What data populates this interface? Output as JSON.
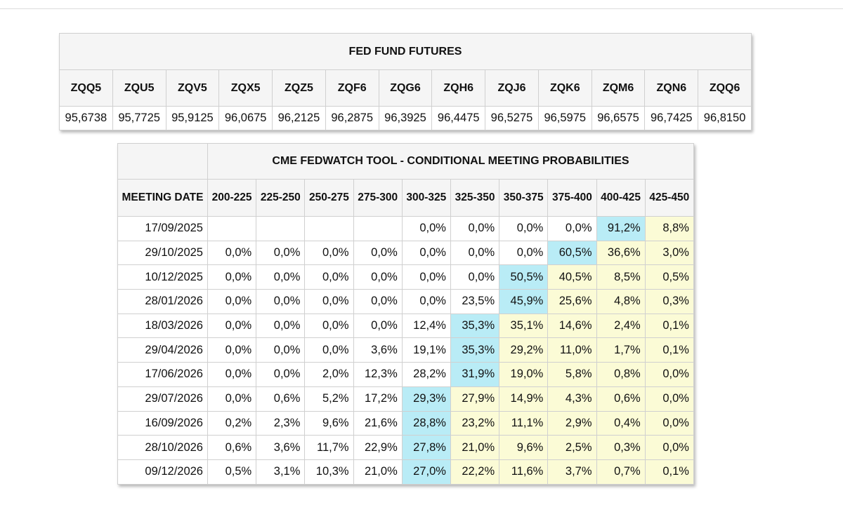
{
  "futures": {
    "title": "FED FUND FUTURES",
    "contracts": [
      {
        "code": "ZQQ5",
        "price": "95,6738"
      },
      {
        "code": "ZQU5",
        "price": "95,7725"
      },
      {
        "code": "ZQV5",
        "price": "95,9125"
      },
      {
        "code": "ZQX5",
        "price": "96,0675"
      },
      {
        "code": "ZQZ5",
        "price": "96,2125"
      },
      {
        "code": "ZQF6",
        "price": "96,2875"
      },
      {
        "code": "ZQG6",
        "price": "96,3925"
      },
      {
        "code": "ZQH6",
        "price": "96,4475"
      },
      {
        "code": "ZQJ6",
        "price": "96,5275"
      },
      {
        "code": "ZQK6",
        "price": "96,5975"
      },
      {
        "code": "ZQM6",
        "price": "96,6575"
      },
      {
        "code": "ZQN6",
        "price": "96,7425"
      },
      {
        "code": "ZQQ6",
        "price": "96,8150"
      }
    ]
  },
  "fedwatch": {
    "title": "CME FEDWATCH TOOL - CONDITIONAL MEETING PROBABILITIES",
    "date_header": "MEETING DATE",
    "ranges": [
      "200-225",
      "225-250",
      "250-275",
      "275-300",
      "300-325",
      "325-350",
      "350-375",
      "375-400",
      "400-425",
      "425-450"
    ],
    "colors": {
      "blue": "#b9ecf6",
      "yellow": "#fbfbd6"
    },
    "rows": [
      {
        "date": "17/09/2025",
        "values": [
          "",
          "",
          "",
          "",
          "0,0%",
          "0,0%",
          "0,0%",
          "0,0%",
          "91,2%",
          "8,8%"
        ],
        "hl": [
          "",
          "",
          "",
          "",
          "",
          "",
          "",
          "",
          "b",
          "y"
        ]
      },
      {
        "date": "29/10/2025",
        "values": [
          "0,0%",
          "0,0%",
          "0,0%",
          "0,0%",
          "0,0%",
          "0,0%",
          "0,0%",
          "60,5%",
          "36,6%",
          "3,0%"
        ],
        "hl": [
          "",
          "",
          "",
          "",
          "",
          "",
          "",
          "b",
          "y",
          "y"
        ]
      },
      {
        "date": "10/12/2025",
        "values": [
          "0,0%",
          "0,0%",
          "0,0%",
          "0,0%",
          "0,0%",
          "0,0%",
          "50,5%",
          "40,5%",
          "8,5%",
          "0,5%"
        ],
        "hl": [
          "",
          "",
          "",
          "",
          "",
          "",
          "b",
          "y",
          "y",
          "y"
        ]
      },
      {
        "date": "28/01/2026",
        "values": [
          "0,0%",
          "0,0%",
          "0,0%",
          "0,0%",
          "0,0%",
          "23,5%",
          "45,9%",
          "25,6%",
          "4,8%",
          "0,3%"
        ],
        "hl": [
          "",
          "",
          "",
          "",
          "",
          "",
          "b",
          "y",
          "y",
          "y"
        ]
      },
      {
        "date": "18/03/2026",
        "values": [
          "0,0%",
          "0,0%",
          "0,0%",
          "0,0%",
          "12,4%",
          "35,3%",
          "35,1%",
          "14,6%",
          "2,4%",
          "0,1%"
        ],
        "hl": [
          "",
          "",
          "",
          "",
          "",
          "b",
          "y",
          "y",
          "y",
          "y"
        ]
      },
      {
        "date": "29/04/2026",
        "values": [
          "0,0%",
          "0,0%",
          "0,0%",
          "3,6%",
          "19,1%",
          "35,3%",
          "29,2%",
          "11,0%",
          "1,7%",
          "0,1%"
        ],
        "hl": [
          "",
          "",
          "",
          "",
          "",
          "b",
          "y",
          "y",
          "y",
          "y"
        ]
      },
      {
        "date": "17/06/2026",
        "values": [
          "0,0%",
          "0,0%",
          "2,0%",
          "12,3%",
          "28,2%",
          "31,9%",
          "19,0%",
          "5,8%",
          "0,8%",
          "0,0%"
        ],
        "hl": [
          "",
          "",
          "",
          "",
          "",
          "b",
          "y",
          "y",
          "y",
          "y"
        ]
      },
      {
        "date": "29/07/2026",
        "values": [
          "0,0%",
          "0,6%",
          "5,2%",
          "17,2%",
          "29,3%",
          "27,9%",
          "14,9%",
          "4,3%",
          "0,6%",
          "0,0%"
        ],
        "hl": [
          "",
          "",
          "",
          "",
          "b",
          "y",
          "y",
          "y",
          "y",
          "y"
        ]
      },
      {
        "date": "16/09/2026",
        "values": [
          "0,2%",
          "2,3%",
          "9,6%",
          "21,6%",
          "28,8%",
          "23,2%",
          "11,1%",
          "2,9%",
          "0,4%",
          "0,0%"
        ],
        "hl": [
          "",
          "",
          "",
          "",
          "b",
          "y",
          "y",
          "y",
          "y",
          "y"
        ]
      },
      {
        "date": "28/10/2026",
        "values": [
          "0,6%",
          "3,6%",
          "11,7%",
          "22,9%",
          "27,8%",
          "21,0%",
          "9,6%",
          "2,5%",
          "0,3%",
          "0,0%"
        ],
        "hl": [
          "",
          "",
          "",
          "",
          "b",
          "y",
          "y",
          "y",
          "y",
          "y"
        ]
      },
      {
        "date": "09/12/2026",
        "values": [
          "0,5%",
          "3,1%",
          "10,3%",
          "21,0%",
          "27,0%",
          "22,2%",
          "11,6%",
          "3,7%",
          "0,7%",
          "0,1%"
        ],
        "hl": [
          "",
          "",
          "",
          "",
          "b",
          "y",
          "y",
          "y",
          "y",
          "y"
        ]
      }
    ]
  }
}
